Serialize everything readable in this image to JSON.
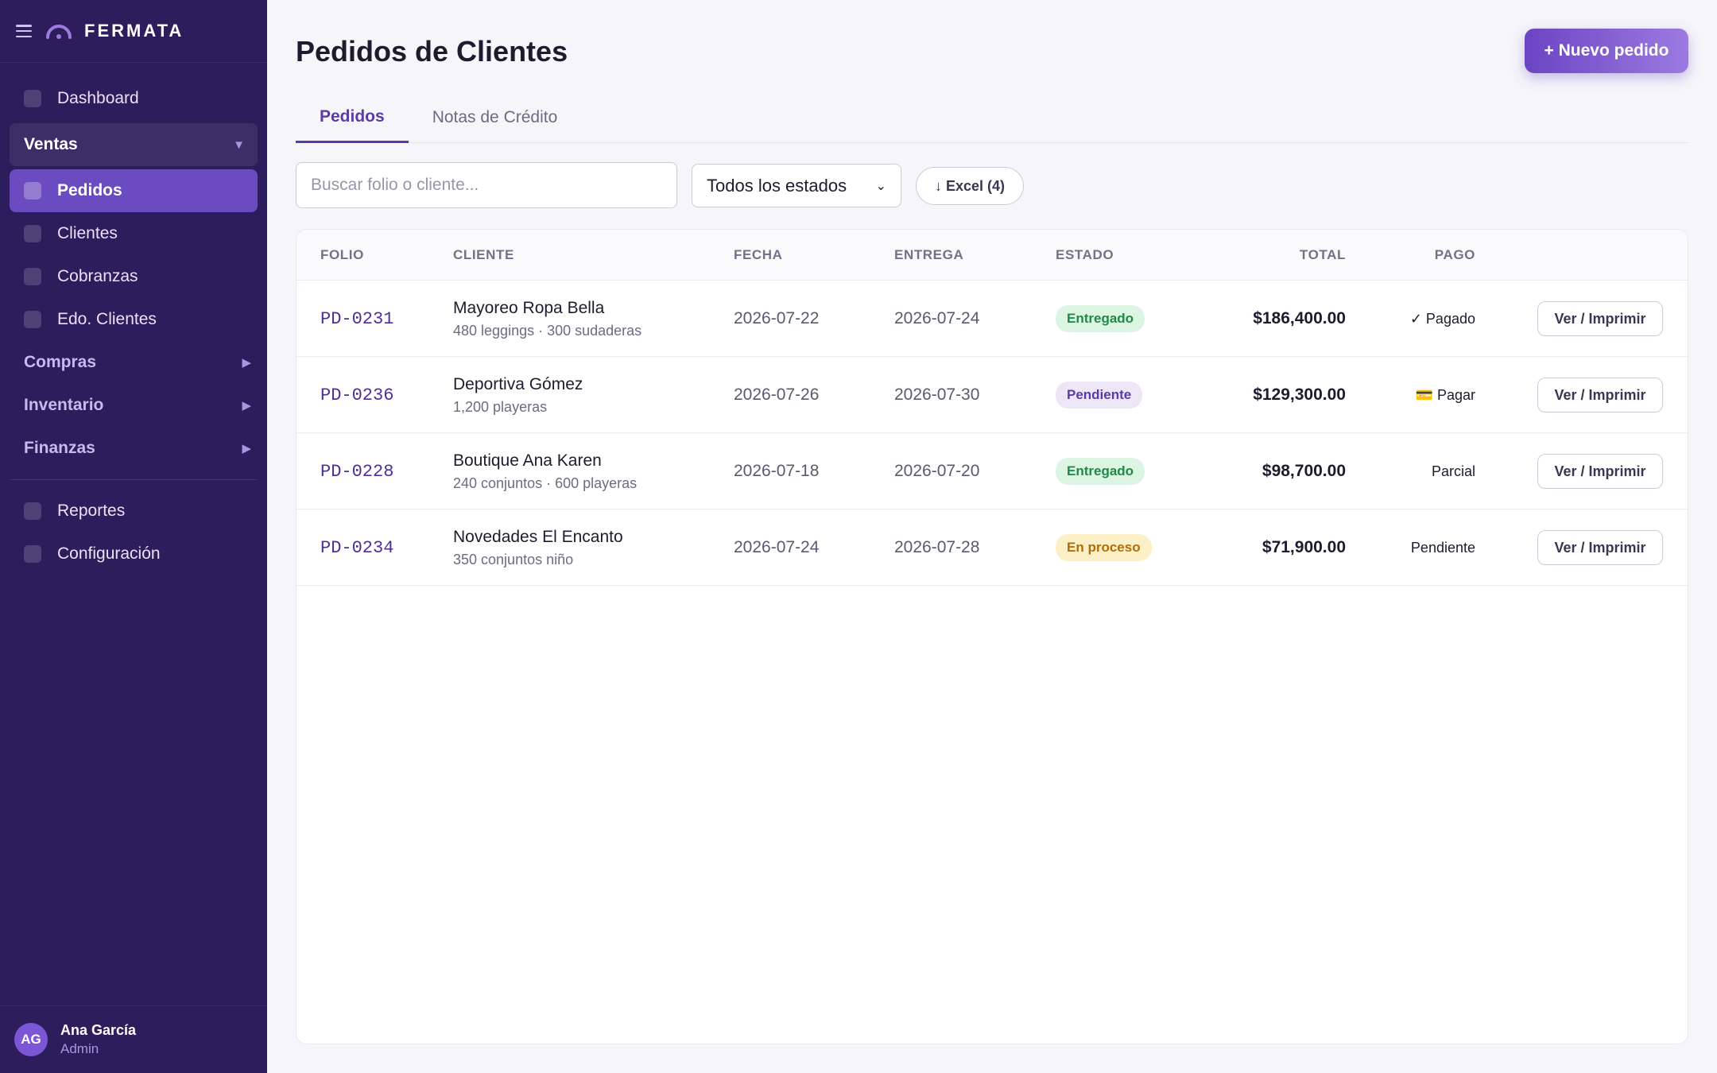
{
  "app": {
    "brand": "FERMATA"
  },
  "sidebar": {
    "items_top": [
      {
        "label": "Dashboard"
      }
    ],
    "ventas": {
      "label": "Ventas",
      "caret": "▼"
    },
    "ventas_items": [
      {
        "label": "Pedidos",
        "active": true
      },
      {
        "label": "Clientes"
      },
      {
        "label": "Cobranzas"
      },
      {
        "label": "Edo. Clientes"
      }
    ],
    "sections": [
      {
        "label": "Compras",
        "caret": "▶"
      },
      {
        "label": "Inventario",
        "caret": "▶"
      },
      {
        "label": "Finanzas",
        "caret": "▶"
      }
    ],
    "items_bottom": [
      {
        "label": "Reportes"
      },
      {
        "label": "Configuración"
      }
    ]
  },
  "user": {
    "initials": "AG",
    "name": "Ana García",
    "role": "Admin"
  },
  "page": {
    "title": "Pedidos de Clientes",
    "new_button": "+ Nuevo pedido"
  },
  "tabs": [
    {
      "label": "Pedidos",
      "active": true
    },
    {
      "label": "Notas de Crédito"
    }
  ],
  "filters": {
    "search_placeholder": "Buscar folio o cliente...",
    "status_value": "Todos los estados",
    "excel_label": "↓ Excel (4)"
  },
  "table": {
    "headers": {
      "folio": "FOLIO",
      "cliente": "CLIENTE",
      "fecha": "FECHA",
      "entrega": "ENTREGA",
      "estado": "ESTADO",
      "total": "TOTAL",
      "pago": "PAGO"
    },
    "rows": [
      {
        "folio": "PD-0231",
        "cliente": "Mayoreo Ropa Bella",
        "detalle": "480 leggings · 300 sudaderas",
        "fecha": "2026-07-22",
        "entrega": "2026-07-24",
        "estado": "Entregado",
        "total": "$186,400.00",
        "pago": "✓ Pagado",
        "accion": "Ver / Imprimir"
      },
      {
        "folio": "PD-0236",
        "cliente": "Deportiva Gómez",
        "detalle": "1,200 playeras",
        "fecha": "2026-07-26",
        "entrega": "2026-07-30",
        "estado": "Pendiente",
        "total": "$129,300.00",
        "pago": "💳 Pagar",
        "accion": "Ver / Imprimir"
      },
      {
        "folio": "PD-0228",
        "cliente": "Boutique Ana Karen",
        "detalle": "240 conjuntos · 600 playeras",
        "fecha": "2026-07-18",
        "entrega": "2026-07-20",
        "estado": "Entregado",
        "total": "$98,700.00",
        "pago": "Parcial",
        "accion": "Ver / Imprimir"
      },
      {
        "folio": "PD-0234",
        "cliente": "Novedades El Encanto",
        "detalle": "350 conjuntos niño",
        "fecha": "2026-07-24",
        "entrega": "2026-07-28",
        "estado": "En proceso",
        "total": "$71,900.00",
        "pago": "Pendiente",
        "accion": "Ver / Imprimir"
      }
    ]
  },
  "colors": {
    "sidebar_bg": "#2e1d5c",
    "accent": "#6a4cc0",
    "entregado": "#1f8a47",
    "pendiente": "#5b3ba8",
    "en_proceso": "#b06e06"
  }
}
